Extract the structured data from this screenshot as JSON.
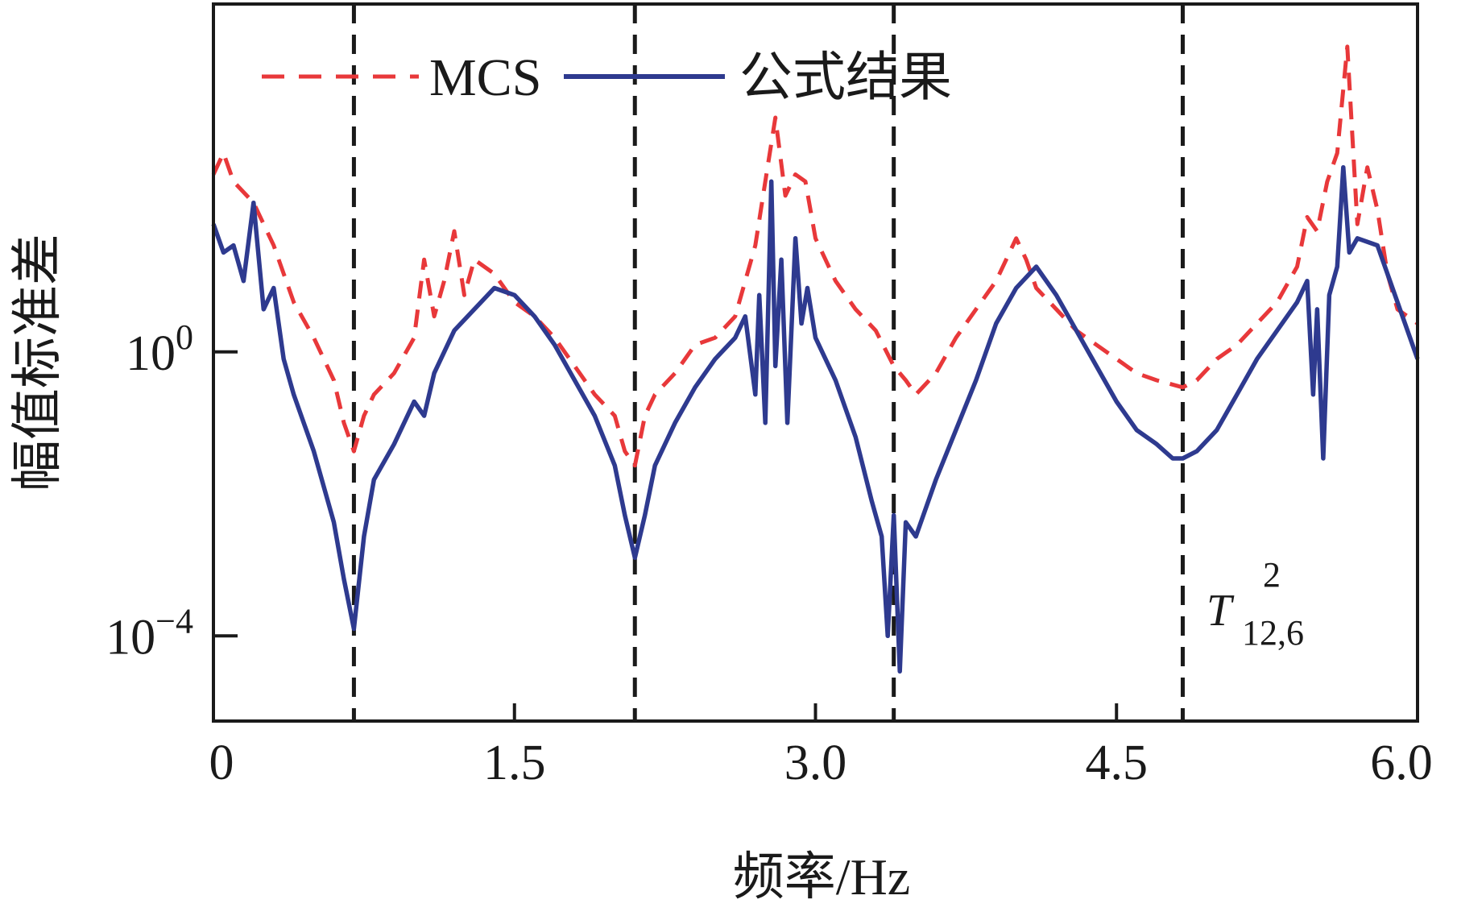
{
  "chart_data": {
    "type": "line",
    "xlabel": "频率/Hz",
    "ylabel": "幅值标准差",
    "xlim": [
      0,
      6.0
    ],
    "ylim_log10": [
      -5.2,
      4.9
    ],
    "yscale": "log",
    "x_ticks": [
      "0",
      "1.5",
      "3.0",
      "4.5",
      "6.0"
    ],
    "x_tick_values": [
      0,
      1.5,
      3.0,
      4.5,
      6.0
    ],
    "y_ticks": [
      {
        "base": "10",
        "exp": "0",
        "log10": 0
      },
      {
        "base": "10",
        "exp": "−4",
        "log10": -4
      }
    ],
    "vlines": [
      0.7,
      2.1,
      3.39,
      4.83
    ],
    "annotation": {
      "main": "T",
      "sup": "2",
      "sub": "12,6"
    },
    "legend_placement": "top-left",
    "grid": false,
    "series": [
      {
        "name": "MCS",
        "style": "dashed",
        "color": "#e8383a",
        "x": [
          0,
          0.05,
          0.1,
          0.2,
          0.3,
          0.4,
          0.5,
          0.6,
          0.65,
          0.7,
          0.75,
          0.8,
          0.9,
          1.0,
          1.05,
          1.1,
          1.15,
          1.2,
          1.25,
          1.3,
          1.4,
          1.5,
          1.6,
          1.7,
          1.8,
          1.9,
          2.0,
          2.05,
          2.1,
          2.15,
          2.2,
          2.3,
          2.4,
          2.5,
          2.6,
          2.7,
          2.75,
          2.8,
          2.85,
          2.9,
          2.95,
          3.0,
          3.1,
          3.2,
          3.3,
          3.39,
          3.45,
          3.5,
          3.6,
          3.7,
          3.8,
          3.9,
          4.0,
          4.05,
          4.1,
          4.2,
          4.3,
          4.4,
          4.5,
          4.6,
          4.7,
          4.83,
          4.9,
          5.0,
          5.1,
          5.2,
          5.3,
          5.4,
          5.45,
          5.5,
          5.55,
          5.6,
          5.65,
          5.7,
          5.75,
          5.8,
          5.85,
          5.9,
          6.0
        ],
        "log10": [
          2.5,
          2.8,
          2.4,
          2.1,
          1.5,
          0.7,
          0.2,
          -0.4,
          -1.0,
          -1.4,
          -0.9,
          -0.6,
          -0.3,
          0.2,
          1.3,
          0.5,
          1.0,
          1.7,
          0.8,
          1.3,
          1.1,
          0.7,
          0.5,
          0.2,
          -0.2,
          -0.6,
          -0.9,
          -1.4,
          -1.6,
          -0.9,
          -0.6,
          -0.3,
          0.1,
          0.2,
          0.5,
          1.5,
          2.4,
          3.3,
          2.2,
          2.5,
          2.4,
          1.6,
          1.0,
          0.6,
          0.3,
          -0.2,
          -0.4,
          -0.6,
          -0.3,
          0.2,
          0.6,
          1.0,
          1.6,
          1.3,
          0.9,
          0.6,
          0.3,
          0.1,
          -0.1,
          -0.3,
          -0.4,
          -0.5,
          -0.4,
          -0.1,
          0.1,
          0.4,
          0.7,
          1.2,
          1.9,
          1.7,
          2.4,
          2.8,
          4.3,
          1.8,
          2.6,
          2.0,
          1.1,
          0.6,
          0.4
        ]
      },
      {
        "name": "公式结果",
        "style": "solid",
        "color": "#2e3a8f",
        "x": [
          0,
          0.05,
          0.1,
          0.15,
          0.2,
          0.25,
          0.3,
          0.35,
          0.4,
          0.5,
          0.6,
          0.65,
          0.7,
          0.75,
          0.8,
          0.9,
          1.0,
          1.05,
          1.1,
          1.2,
          1.3,
          1.4,
          1.5,
          1.6,
          1.7,
          1.8,
          1.9,
          2.0,
          2.05,
          2.1,
          2.15,
          2.2,
          2.3,
          2.4,
          2.5,
          2.6,
          2.65,
          2.7,
          2.72,
          2.75,
          2.78,
          2.8,
          2.83,
          2.86,
          2.9,
          2.93,
          2.96,
          3.0,
          3.1,
          3.2,
          3.28,
          3.33,
          3.36,
          3.39,
          3.42,
          3.45,
          3.5,
          3.6,
          3.7,
          3.8,
          3.9,
          4.0,
          4.1,
          4.2,
          4.3,
          4.4,
          4.5,
          4.6,
          4.7,
          4.78,
          4.83,
          4.9,
          5.0,
          5.1,
          5.2,
          5.3,
          5.4,
          5.45,
          5.48,
          5.5,
          5.53,
          5.56,
          5.6,
          5.63,
          5.66,
          5.7,
          5.8,
          5.9,
          6.0
        ],
        "log10": [
          1.8,
          1.4,
          1.5,
          1.0,
          2.1,
          0.6,
          0.9,
          -0.1,
          -0.6,
          -1.4,
          -2.4,
          -3.2,
          -3.9,
          -2.6,
          -1.8,
          -1.3,
          -0.7,
          -0.9,
          -0.3,
          0.3,
          0.6,
          0.9,
          0.8,
          0.5,
          0.1,
          -0.4,
          -0.9,
          -1.6,
          -2.3,
          -2.9,
          -2.3,
          -1.6,
          -1.0,
          -0.5,
          -0.1,
          0.2,
          0.5,
          -0.6,
          0.8,
          -1.0,
          2.4,
          -0.2,
          1.3,
          -1.0,
          1.6,
          0.4,
          0.9,
          0.2,
          -0.4,
          -1.2,
          -2.1,
          -2.6,
          -4.0,
          -2.3,
          -4.5,
          -2.4,
          -2.6,
          -1.8,
          -1.1,
          -0.4,
          0.4,
          0.9,
          1.2,
          0.8,
          0.3,
          -0.2,
          -0.7,
          -1.1,
          -1.3,
          -1.5,
          -1.5,
          -1.4,
          -1.1,
          -0.6,
          -0.1,
          0.3,
          0.7,
          1.0,
          -0.6,
          0.6,
          -1.5,
          0.8,
          1.2,
          2.6,
          1.4,
          1.6,
          1.5,
          0.7,
          -0.1
        ]
      }
    ]
  }
}
